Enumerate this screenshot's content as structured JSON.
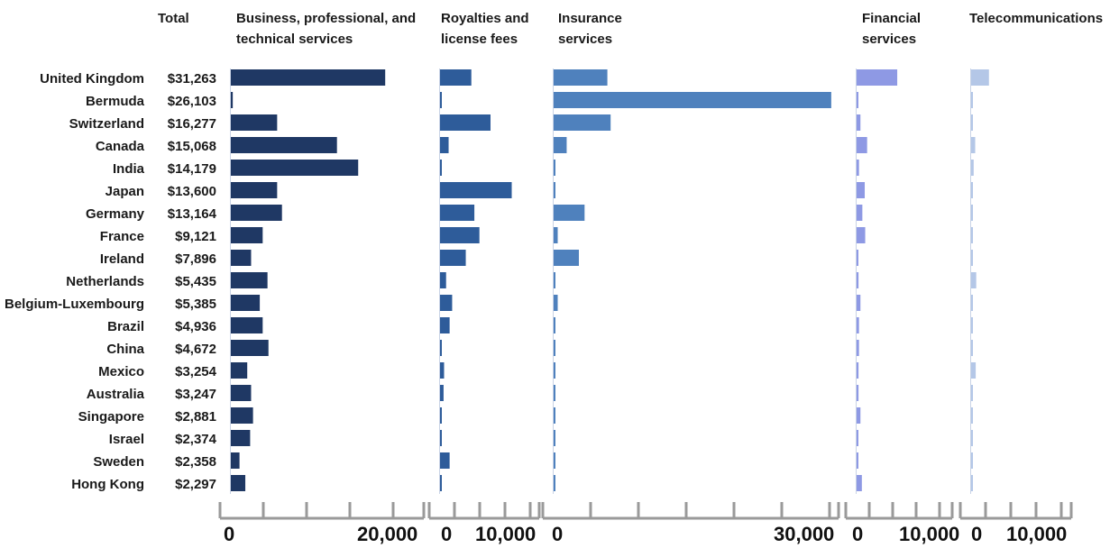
{
  "chart_data": {
    "type": "bar",
    "orientation": "horizontal",
    "categories": [
      "United Kingdom",
      "Bermuda",
      "Switzerland",
      "Canada",
      "India",
      "Japan",
      "Germany",
      "France",
      "Ireland",
      "Netherlands",
      "Belgium-Luxembourg",
      "Brazil",
      "China",
      "Mexico",
      "Australia",
      "Singapore",
      "Israel",
      "Sweden",
      "Hong Kong"
    ],
    "total_header": "Total",
    "totals": [
      "$31,263",
      "$26,103",
      "$16,277",
      "$15,068",
      "$14,179",
      "$13,600",
      "$13,164",
      "$9,121",
      "$7,896",
      "$5,435",
      "$5,385",
      "$4,936",
      "$4,672",
      "$3,254",
      "$3,247",
      "$2,881",
      "$2,374",
      "$2,358",
      "$2,297"
    ],
    "series": [
      {
        "name": "Business, professional, and technical services",
        "name_lines": [
          "Business, professional, and",
          "technical services"
        ],
        "color": "#1f3864",
        "xlim": [
          0,
          20000
        ],
        "tick_labels": [
          "0",
          "20,000"
        ],
        "values": [
          16000,
          200,
          4800,
          11000,
          13200,
          4800,
          5300,
          3300,
          2100,
          3800,
          3000,
          3300,
          3900,
          1700,
          2100,
          2300,
          2000,
          900,
          1500
        ]
      },
      {
        "name": "Royalties and license fees",
        "name_lines": [
          "Royalties and",
          "license fees"
        ],
        "color": "#2e5c9a",
        "xlim": [
          0,
          20000
        ],
        "tick_labels": [
          "0",
          "10,000"
        ],
        "values": [
          6200,
          100,
          10000,
          1700,
          100,
          14200,
          6800,
          7800,
          5100,
          1200,
          2400,
          1900,
          100,
          800,
          700,
          100,
          100,
          1900,
          100
        ]
      },
      {
        "name": "Insurance services",
        "name_lines": [
          "Insurance",
          "services"
        ],
        "color": "#4f81bd",
        "xlim": [
          0,
          35000
        ],
        "tick_labels": [
          "0",
          "30,000"
        ],
        "values": [
          6600,
          34100,
          7000,
          1600,
          100,
          100,
          3800,
          500,
          3100,
          100,
          500,
          100,
          100,
          100,
          100,
          100,
          0,
          100,
          0
        ]
      },
      {
        "name": "Financial services",
        "name_lines": [
          "Financial",
          "services"
        ],
        "color": "#8e99e4",
        "xlim": [
          0,
          20000
        ],
        "tick_labels": [
          "0",
          "10,000"
        ],
        "values": [
          8500,
          100,
          800,
          2200,
          500,
          1700,
          1200,
          1800,
          200,
          400,
          800,
          500,
          500,
          400,
          400,
          800,
          200,
          200,
          1100
        ]
      },
      {
        "name": "Telecommunications",
        "name_lines": [
          "Telecommunications"
        ],
        "color": "#b4c7e7",
        "xlim": [
          0,
          20000
        ],
        "tick_labels": [
          "0",
          "10,000"
        ],
        "values": [
          3500,
          100,
          100,
          800,
          500,
          100,
          100,
          100,
          100,
          1000,
          100,
          100,
          100,
          900,
          100,
          100,
          100,
          100,
          100
        ]
      }
    ]
  }
}
